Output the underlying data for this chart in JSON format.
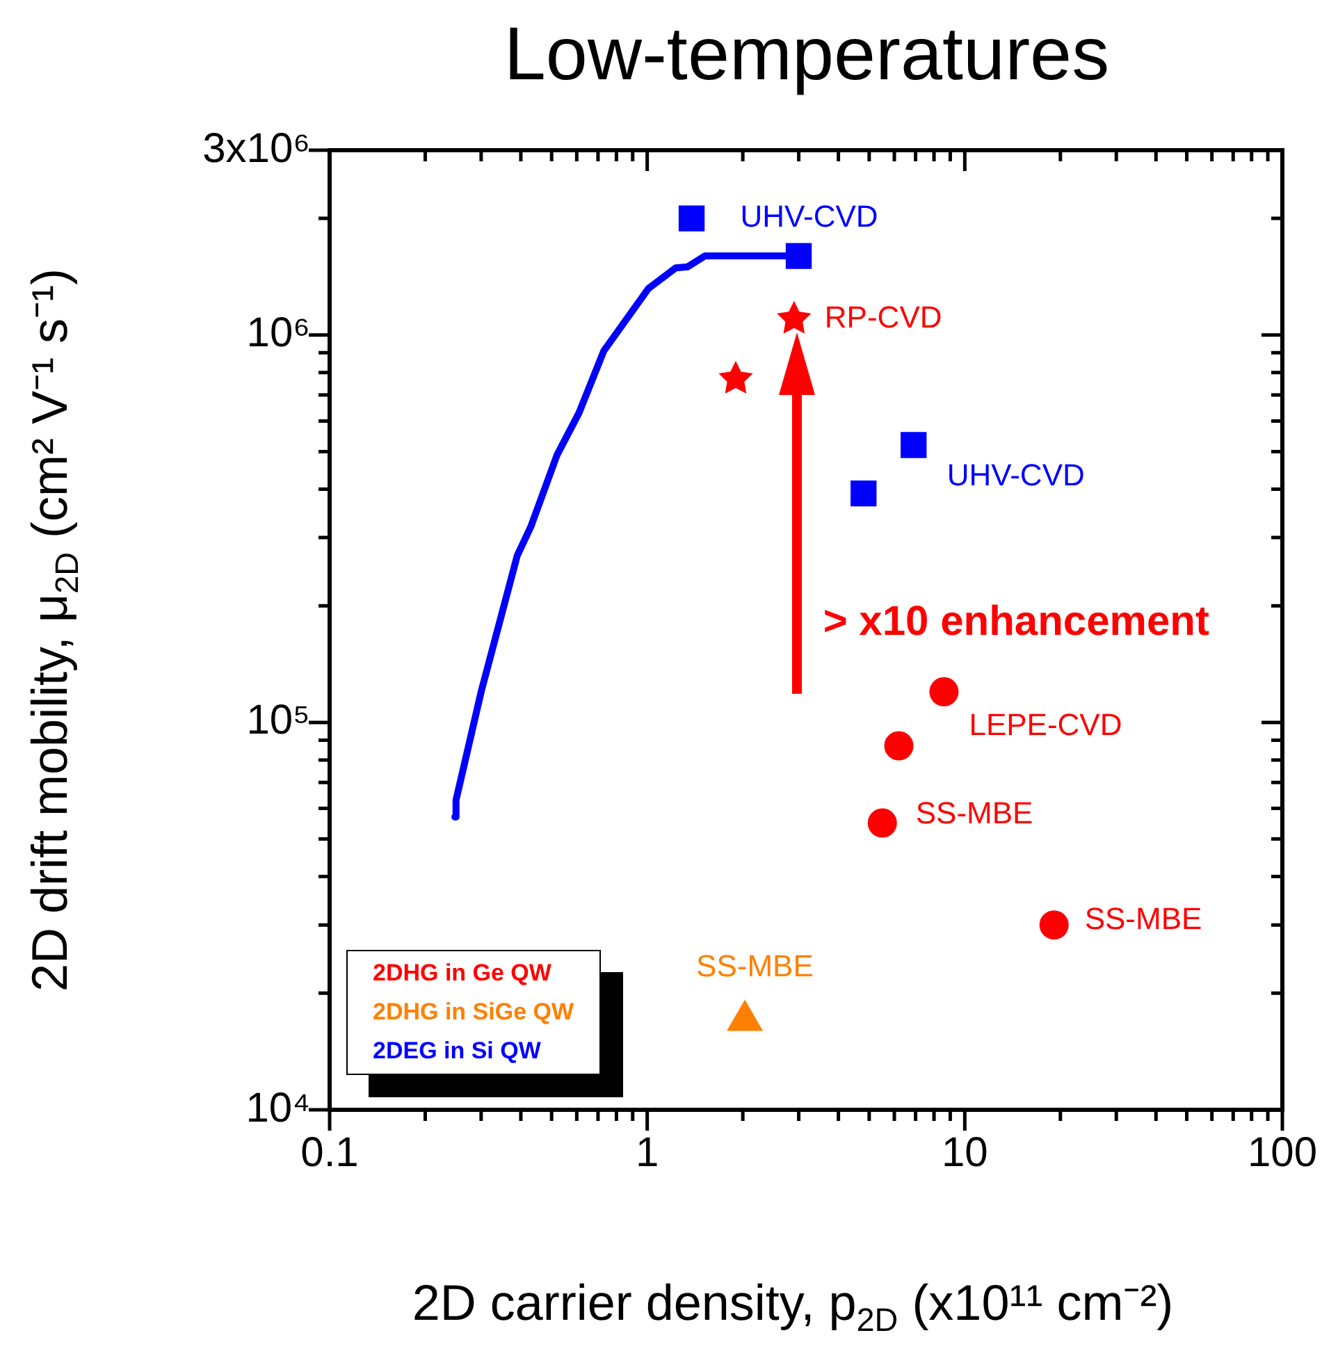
{
  "chart_data": {
    "type": "scatter",
    "title": "Low-temperatures",
    "xlabel": "2D carrier density, p$_{2D}$ (x10¹¹ cm⁻²)",
    "ylabel": "2D drift mobility, μ$_{2D}$ (cm² V⁻¹ s⁻¹)",
    "log": "xy",
    "grid": false,
    "legend": "bottom left",
    "xlim": [
      0.1,
      100
    ],
    "ylim": [
      10000,
      3000000
    ],
    "xticks": [
      0.1,
      {
        "value": 0.2,
        "label": null
      },
      {
        "value": 0.3,
        "label": null
      },
      {
        "value": 0.4,
        "label": null
      },
      {
        "value": 0.5,
        "label": null
      },
      {
        "value": 0.6,
        "label": null
      },
      {
        "value": 0.7,
        "label": null
      },
      {
        "value": 0.8,
        "label": null
      },
      {
        "value": 0.9,
        "label": null
      },
      1,
      {
        "value": 2,
        "label": null
      },
      {
        "value": 3,
        "label": null
      },
      {
        "value": 4,
        "label": null
      },
      {
        "value": 5,
        "label": null
      },
      {
        "value": 6,
        "label": null
      },
      {
        "value": 7,
        "label": null
      },
      {
        "value": 8,
        "label": null
      },
      {
        "value": 9,
        "label": null
      },
      10,
      {
        "value": 20,
        "label": null
      },
      {
        "value": 30,
        "label": null
      },
      {
        "value": 40,
        "label": null
      },
      {
        "value": 50,
        "label": null
      },
      {
        "value": 60,
        "label": null
      },
      {
        "value": 70,
        "label": null
      },
      {
        "value": 80,
        "label": null
      },
      {
        "value": 90,
        "label": null
      },
      100
    ],
    "yticks": [
      {
        "value": 10000,
        "label": "10⁴"
      },
      {
        "value": 20000,
        "label": null
      },
      {
        "value": 30000,
        "label": null
      },
      {
        "value": 40000,
        "label": null
      },
      {
        "value": 50000,
        "label": null
      },
      {
        "value": 60000,
        "label": null
      },
      {
        "value": 70000,
        "label": null
      },
      {
        "value": 80000,
        "label": null
      },
      {
        "value": 90000,
        "label": null
      },
      {
        "value": 100000,
        "label": "10⁵"
      },
      {
        "value": 200000,
        "label": null
      },
      {
        "value": 300000,
        "label": null
      },
      {
        "value": 400000,
        "label": null
      },
      {
        "value": 500000,
        "label": null
      },
      {
        "value": 600000,
        "label": null
      },
      {
        "value": 700000,
        "label": null
      },
      {
        "value": 800000,
        "label": null
      },
      {
        "value": 900000,
        "label": null
      },
      {
        "value": 1000000,
        "label": "10⁶"
      },
      {
        "value": 2000000,
        "label": null
      },
      {
        "value": 3000000,
        "label": "3x10⁶"
      }
    ],
    "series": [
      {
        "color": "#ff0000",
        "marker": "star",
        "x": [
          2.9,
          1.9
        ],
        "values": [
          1100000,
          770000
        ]
      },
      {
        "name": "2DHG in Ge QW",
        "color": "#ff0000",
        "marker": "circle",
        "x": [
          8.6,
          6.2,
          5.5,
          19.1
        ],
        "values": [
          120000,
          87000,
          55000,
          30000
        ]
      },
      {
        "name": "2DHG in SiGe QW",
        "color": "#ff8000",
        "marker": "triangle",
        "x": [
          2.03
        ],
        "values": [
          17000
        ]
      },
      {
        "name": "2DEG in Si QW",
        "type": "line",
        "color": "#0000ff",
        "marker": "none",
        "line_style": "solid",
        "x": [
          0.248,
          0.25,
          0.3,
          0.39,
          0.43,
          0.52,
          0.61,
          0.73,
          1.01,
          1.23,
          1.34,
          1.52,
          3.0
        ],
        "values": [
          57000,
          63000,
          120000,
          270000,
          320000,
          490000,
          630000,
          910000,
          1320000,
          1490000,
          1500000,
          1600000,
          1600000
        ]
      },
      {
        "color": "#0000ff",
        "marker": "square",
        "x": [
          1.38,
          3.0,
          4.8,
          6.9
        ],
        "values": [
          2000000,
          1600000,
          390000,
          520000
        ]
      }
    ],
    "annotations": [
      {
        "text": "UHV-CVD",
        "x": 1.38,
        "y": 2000000
      },
      {
        "text": "RP-CVD",
        "x": 2.9,
        "y": 1100000
      },
      {
        "text": "UHV-CVD",
        "x": 6.9,
        "y": 520000
      },
      "> x10 enhancement",
      {
        "text": "LEPE-CVD",
        "x": 8.6,
        "y": 120000
      },
      {
        "text": "SS-MBE",
        "x": 5.5,
        "y": 55000
      },
      {
        "text": "SS-MBE",
        "x": 19.1,
        "y": 30000
      },
      {
        "text": "SS-MBE",
        "x": 2.03,
        "y": 17000
      }
    ]
  }
}
